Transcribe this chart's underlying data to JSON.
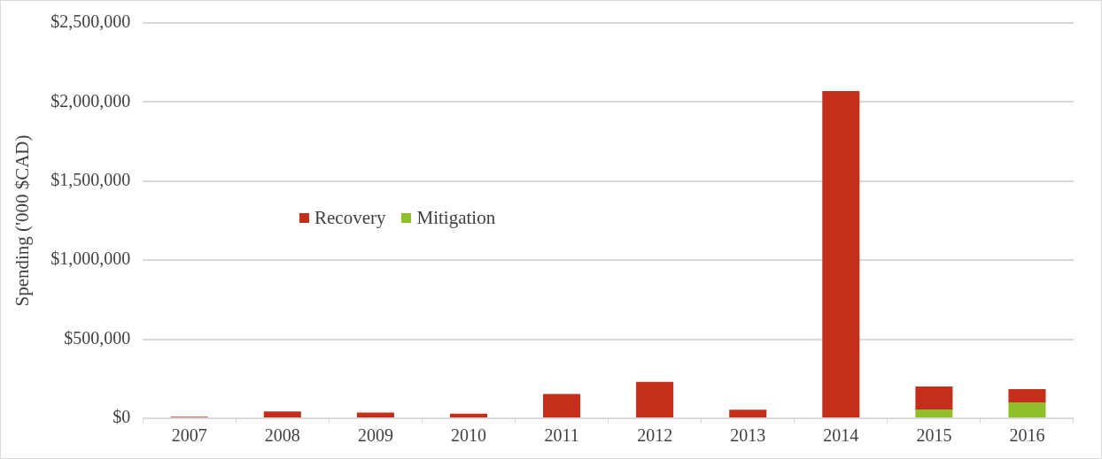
{
  "chart_data": {
    "type": "bar",
    "ylabel": "Spending ('000 $CAD)",
    "categories": [
      "2007",
      "2008",
      "2009",
      "2010",
      "2011",
      "2012",
      "2013",
      "2014",
      "2015",
      "2016"
    ],
    "stacked": true,
    "series": [
      {
        "name": "Mitigation",
        "color": "#8fc02a",
        "values": [
          0,
          0,
          0,
          0,
          0,
          0,
          0,
          0,
          56000,
          100000
        ]
      },
      {
        "name": "Recovery",
        "color": "#c42e1a",
        "values": [
          10000,
          44000,
          36000,
          30000,
          154000,
          231000,
          54000,
          2070000,
          146000,
          85000
        ]
      }
    ],
    "ylim": [
      0,
      2500000
    ],
    "yticks": [
      {
        "value": 0,
        "label": "$0"
      },
      {
        "value": 500000,
        "label": "$500,000"
      },
      {
        "value": 1000000,
        "label": "$1,000,000"
      },
      {
        "value": 1500000,
        "label": "$1,500,000"
      },
      {
        "value": 2000000,
        "label": "$2,000,000"
      },
      {
        "value": 2500000,
        "label": "$2,500,000"
      }
    ],
    "grid": "y",
    "legend": "left"
  }
}
